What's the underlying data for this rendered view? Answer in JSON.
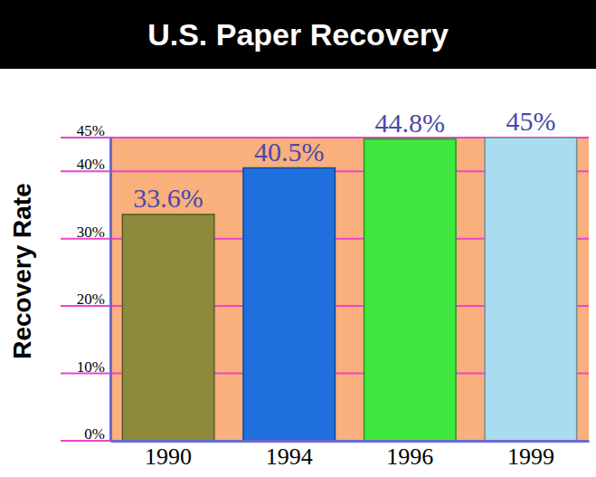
{
  "chart_data": {
    "type": "bar",
    "title": "U.S. Paper Recovery",
    "y_label": "Recovery Rate",
    "categories": [
      "1990",
      "1994",
      "1996",
      "1999"
    ],
    "values": [
      33.6,
      40.5,
      44.8,
      45
    ],
    "value_labels": [
      "33.6%",
      "40.5%",
      "44.8%",
      "45%"
    ],
    "colors": [
      "#8c8a3c",
      "#1f6fdc",
      "#3ee83e",
      "#a9dcee"
    ],
    "ylim": [
      0,
      45
    ],
    "yticks": [
      {
        "value": 0,
        "label": "0%"
      },
      {
        "value": 10,
        "label": "10%"
      },
      {
        "value": 20,
        "label": "20%"
      },
      {
        "value": 30,
        "label": "30%"
      },
      {
        "value": 40,
        "label": "40%"
      },
      {
        "value": 45,
        "label": "45%"
      }
    ],
    "grid": true,
    "data_labels": true
  }
}
